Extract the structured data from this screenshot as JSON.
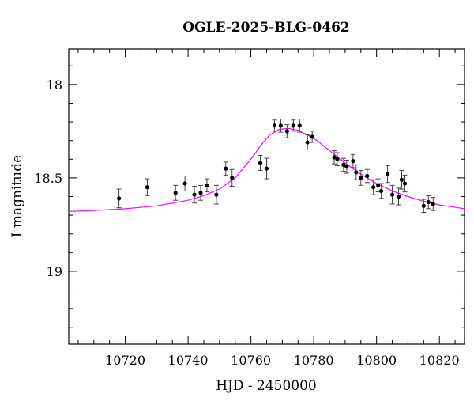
{
  "chart_data": {
    "type": "scatter",
    "title": "OGLE-2025-BLG-0462",
    "xlabel": "HJD - 2450000",
    "ylabel": "I magnitude",
    "xlim": [
      10702,
      10828
    ],
    "ylim": [
      19.39,
      17.81
    ],
    "y_inverted": true,
    "x_ticks": [
      10720,
      10740,
      10760,
      10780,
      10800,
      10820
    ],
    "x_tick_labels": [
      "10720",
      "10740",
      "10760",
      "10780",
      "10800",
      "10820"
    ],
    "y_major_ticks": [
      18.0,
      18.5,
      19.0
    ],
    "y_tick_labels": [
      "18",
      "18.5",
      "19"
    ],
    "grid": false,
    "legend": "none",
    "colors": {
      "data": "#000000",
      "model": "#ff00ff",
      "frame": "#000000"
    },
    "series": [
      {
        "kind": "points_with_errors",
        "x": [
          10718,
          10727,
          10736,
          10739,
          10742,
          10744,
          10746,
          10749,
          10752,
          10754,
          10763,
          10765,
          10767.5,
          10769.5,
          10771.5,
          10773.5,
          10775.5,
          10778,
          10779.5,
          10786.5,
          10787.5,
          10789.5,
          10790.5,
          10792.5,
          10793.5,
          10795,
          10797,
          10799,
          10800.5,
          10801.5,
          10803.5,
          10805,
          10807,
          10808,
          10809,
          10815,
          10816.5,
          10818
        ],
        "y": [
          18.61,
          18.55,
          18.58,
          18.53,
          18.59,
          18.58,
          18.54,
          18.59,
          18.45,
          18.5,
          18.42,
          18.45,
          18.22,
          18.22,
          18.25,
          18.22,
          18.22,
          18.31,
          18.28,
          18.39,
          18.4,
          18.43,
          18.44,
          18.41,
          18.47,
          18.5,
          18.49,
          18.55,
          18.54,
          18.57,
          18.48,
          18.59,
          18.6,
          18.51,
          18.53,
          18.65,
          18.63,
          18.64
        ],
        "err": [
          0.05,
          0.045,
          0.04,
          0.04,
          0.045,
          0.04,
          0.035,
          0.05,
          0.035,
          0.045,
          0.04,
          0.055,
          0.03,
          0.035,
          0.035,
          0.03,
          0.035,
          0.04,
          0.03,
          0.035,
          0.035,
          0.035,
          0.035,
          0.035,
          0.04,
          0.04,
          0.035,
          0.04,
          0.035,
          0.04,
          0.045,
          0.05,
          0.045,
          0.05,
          0.045,
          0.035,
          0.035,
          0.035
        ]
      },
      {
        "kind": "model_curve",
        "x": [
          10702,
          10710,
          10720,
          10730,
          10740,
          10745,
          10750,
          10755,
          10760,
          10763,
          10766,
          10769,
          10772,
          10775,
          10778,
          10781,
          10784,
          10787,
          10790,
          10795,
          10800,
          10805,
          10810,
          10815,
          10820,
          10828
        ],
        "y": [
          18.68,
          18.675,
          18.665,
          18.65,
          18.62,
          18.595,
          18.56,
          18.5,
          18.4,
          18.33,
          18.27,
          18.24,
          18.235,
          18.245,
          18.27,
          18.3,
          18.34,
          18.38,
          18.42,
          18.48,
          18.53,
          18.57,
          18.6,
          18.625,
          18.645,
          18.665
        ]
      }
    ]
  }
}
